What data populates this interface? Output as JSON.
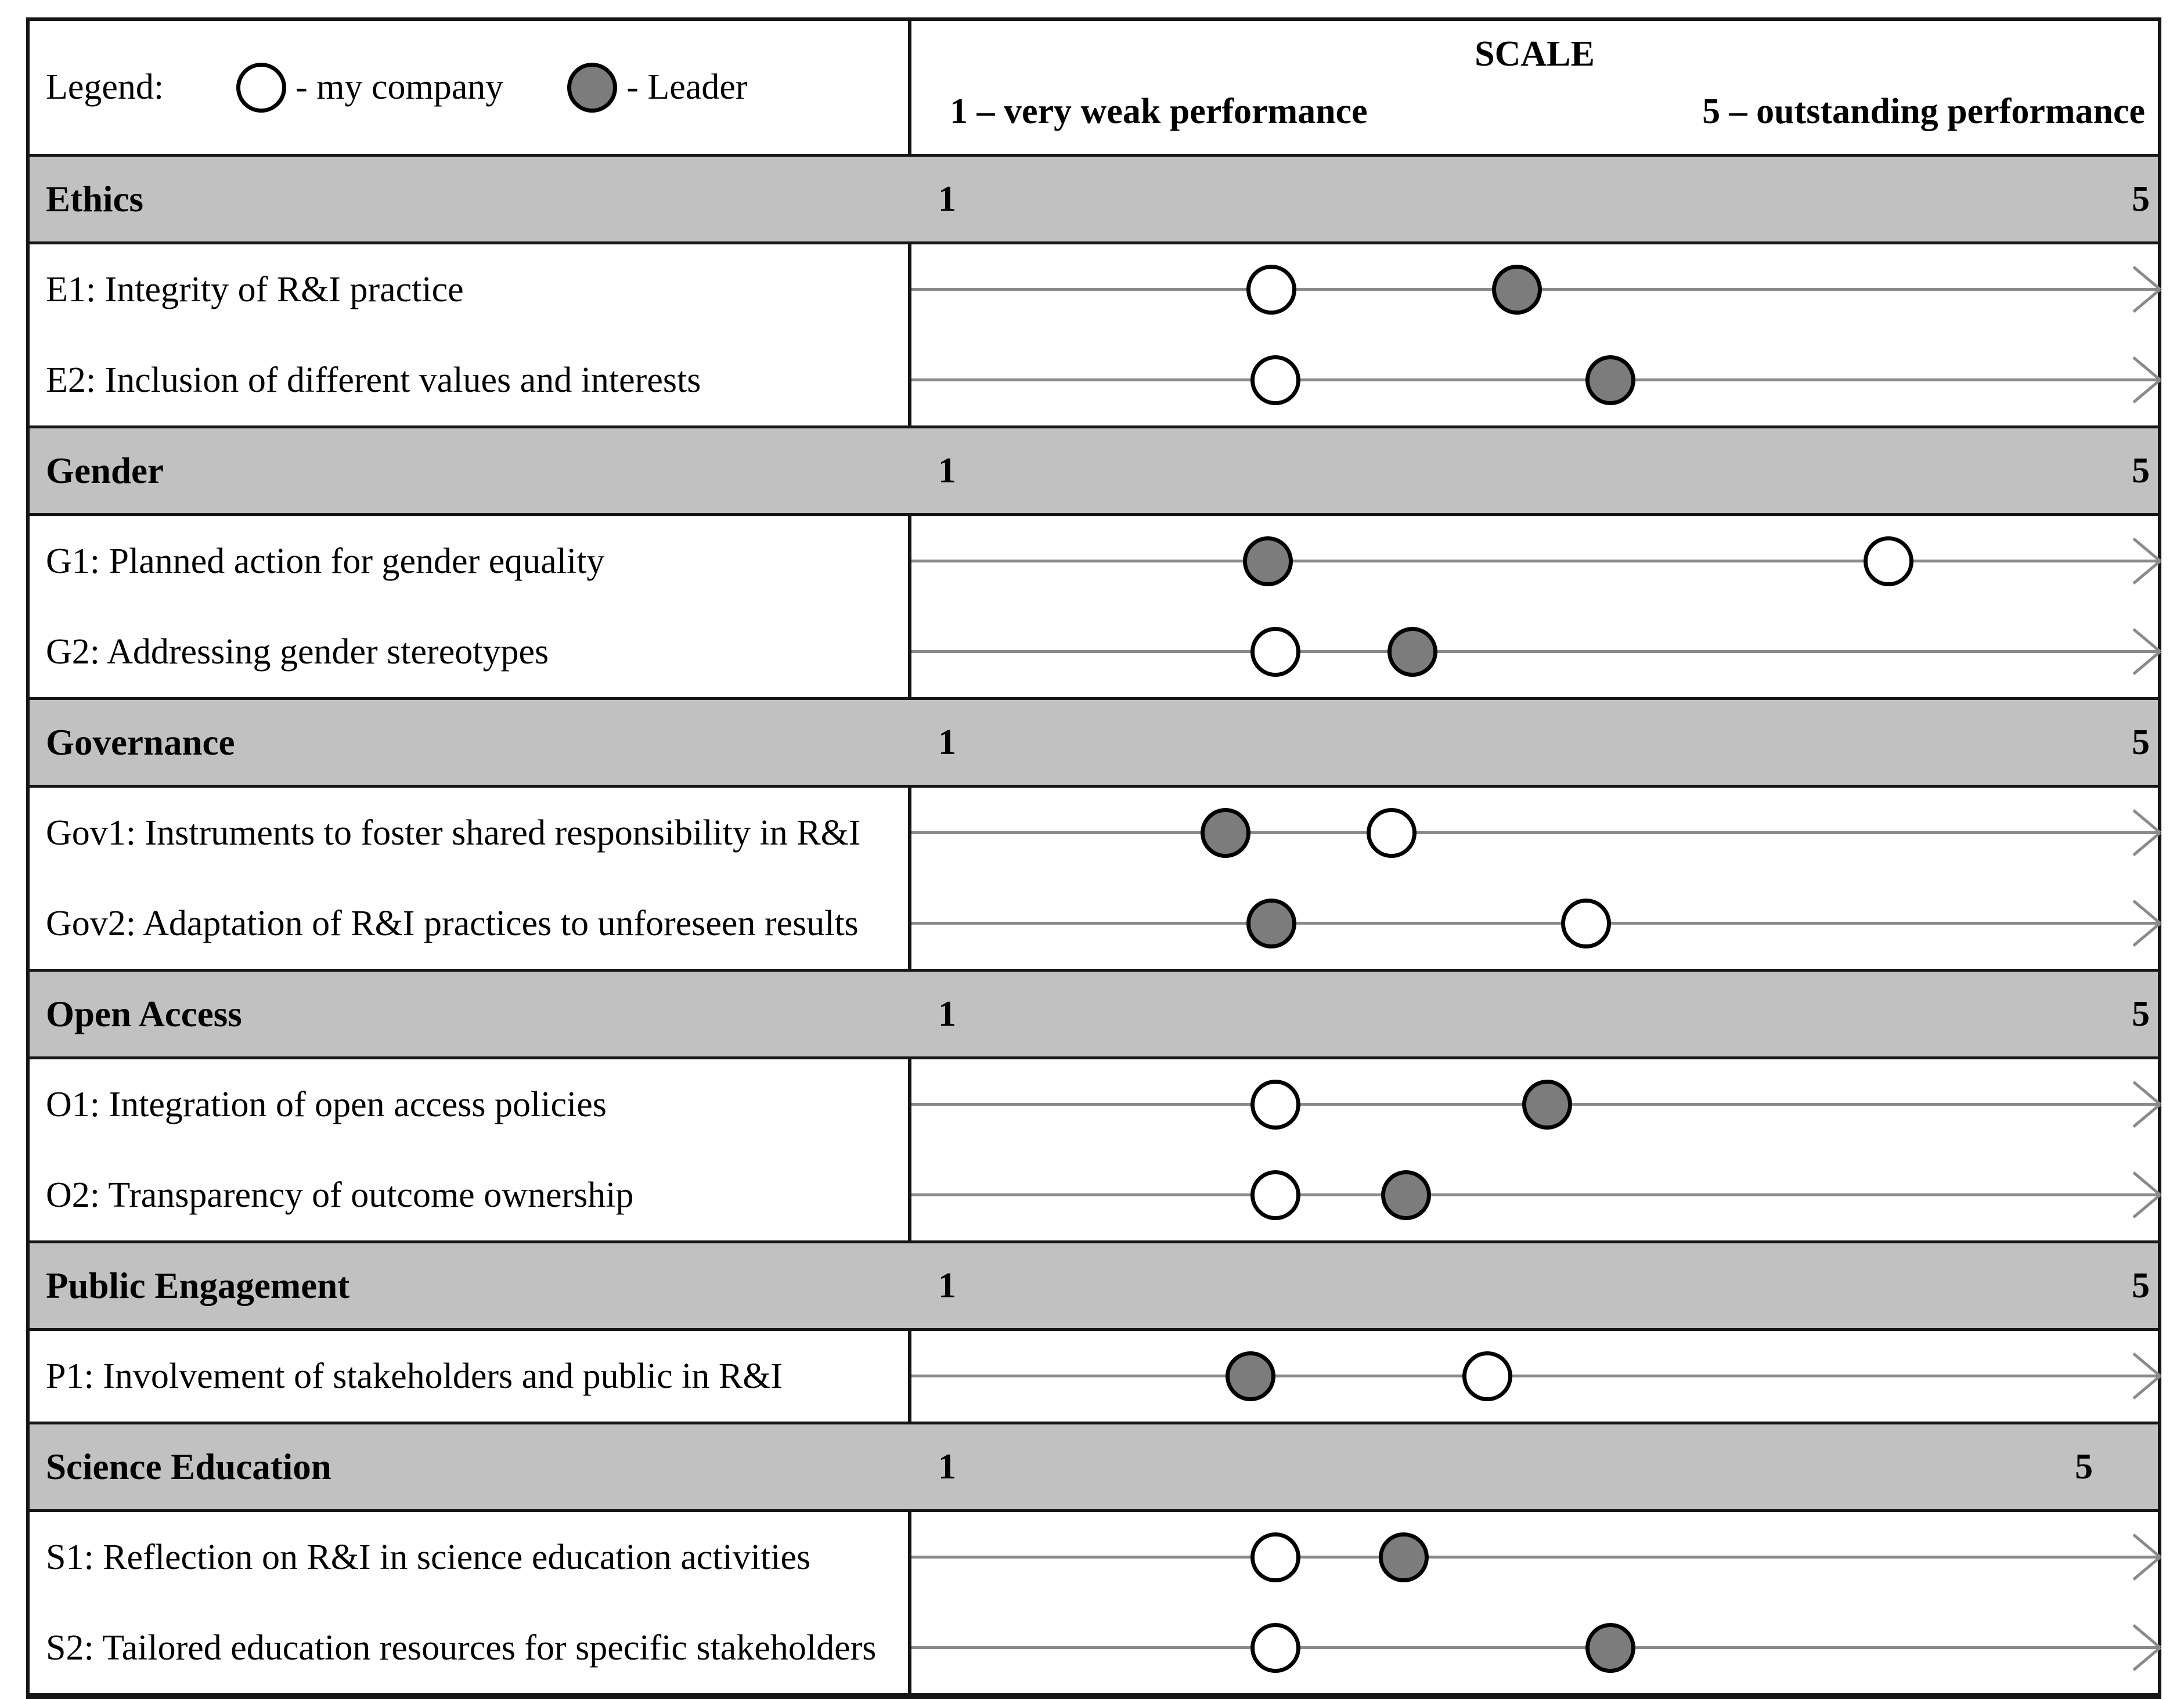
{
  "colors": {
    "band_gray": "#c1c1c1",
    "leader_fill": "#7c7c7c",
    "my_company_fill": "#ffffff",
    "marker_border": "#000000",
    "arrow_gray": "#8a8a8a",
    "frame_black": "#161616"
  },
  "legend": {
    "label": "Legend:",
    "my_company": "- my company",
    "leader": "- Leader"
  },
  "scale_header": {
    "title": "SCALE",
    "left_label": "1 – very weak performance",
    "right_label": "5 – outstanding performance"
  },
  "sections": [
    {
      "name": "Ethics",
      "scale_min": "1",
      "scale_max": "5",
      "five_right_pad": 14,
      "rows": [
        {
          "label": "E1: Integrity of R&I practice",
          "my_company_pct": 28.9,
          "leader_pct": 48.6
        },
        {
          "label": "E2: Inclusion of different values and interests",
          "my_company_pct": 29.2,
          "leader_pct": 56.1
        }
      ]
    },
    {
      "name": "Gender",
      "scale_min": "1",
      "scale_max": "5",
      "five_right_pad": 14,
      "rows": [
        {
          "label": "G1: Planned action for gender equality",
          "my_company_pct": 78.4,
          "leader_pct": 28.6
        },
        {
          "label": "G2: Addressing gender stereotypes",
          "my_company_pct": 29.2,
          "leader_pct": 40.2
        }
      ]
    },
    {
      "name": "Governance",
      "scale_min": "1",
      "scale_max": "5",
      "five_right_pad": 14,
      "rows": [
        {
          "label": "Gov1: Instruments to foster shared responsibility in R&I",
          "my_company_pct": 38.5,
          "leader_pct": 25.2
        },
        {
          "label": "Gov2: Adaptation of R&I practices to unforeseen results",
          "my_company_pct": 54.1,
          "leader_pct": 28.9
        }
      ]
    },
    {
      "name": "Open Access",
      "scale_min": "1",
      "scale_max": "5",
      "five_right_pad": 14,
      "rows": [
        {
          "label": "O1: Integration of open access policies",
          "my_company_pct": 29.2,
          "leader_pct": 51.0
        },
        {
          "label": "O2: Transparency of outcome ownership",
          "my_company_pct": 29.2,
          "leader_pct": 39.7
        }
      ]
    },
    {
      "name": "Public Engagement",
      "scale_min": "1",
      "scale_max": "5",
      "five_right_pad": 14,
      "rows": [
        {
          "label": "P1: Involvement of stakeholders and public in R&I",
          "my_company_pct": 46.2,
          "leader_pct": 27.2
        }
      ]
    },
    {
      "name": "Science Education",
      "scale_min": "1",
      "scale_max": "5",
      "five_right_pad": 112,
      "rows": [
        {
          "label": "S1: Reflection on R&I in science education activities",
          "my_company_pct": 29.2,
          "leader_pct": 39.5
        },
        {
          "label": "S2: Tailored education resources for specific stakeholders",
          "my_company_pct": 29.2,
          "leader_pct": 56.1
        }
      ]
    }
  ],
  "chart_data": {
    "type": "scatter",
    "title": "SCALE",
    "x_axis": {
      "min": 1,
      "max": 5,
      "min_label": "1 – very weak performance",
      "max_label": "5 – outstanding performance"
    },
    "legend_entries": [
      "my company",
      "Leader"
    ],
    "groups": [
      "Ethics",
      "Gender",
      "Governance",
      "Open Access",
      "Public Engagement",
      "Science Education"
    ],
    "points": [
      {
        "group": "Ethics",
        "indicator": "E1: Integrity of R&I practice",
        "my_company": 2.2,
        "leader": 2.9
      },
      {
        "group": "Ethics",
        "indicator": "E2: Inclusion of different values and interests",
        "my_company": 2.2,
        "leader": 3.2
      },
      {
        "group": "Gender",
        "indicator": "G1: Planned action for gender equality",
        "my_company": 4.1,
        "leader": 2.1
      },
      {
        "group": "Gender",
        "indicator": "G2: Addressing gender stereotypes",
        "my_company": 2.2,
        "leader": 2.6
      },
      {
        "group": "Governance",
        "indicator": "Gov1: Instruments to foster shared responsibility in R&I",
        "my_company": 2.5,
        "leader": 2.0
      },
      {
        "group": "Governance",
        "indicator": "Gov2: Adaptation of R&I practices to unforeseen results",
        "my_company": 3.2,
        "leader": 2.2
      },
      {
        "group": "Open Access",
        "indicator": "O1: Integration of open access policies",
        "my_company": 2.2,
        "leader": 3.0
      },
      {
        "group": "Open Access",
        "indicator": "O2: Transparency of outcome ownership",
        "my_company": 2.2,
        "leader": 2.6
      },
      {
        "group": "Public Engagement",
        "indicator": "P1: Involvement of stakeholders and public in R&I",
        "my_company": 2.9,
        "leader": 2.1
      },
      {
        "group": "Science Education",
        "indicator": "S1: Reflection on R&I in science education activities",
        "my_company": 2.2,
        "leader": 2.6
      },
      {
        "group": "Science Education",
        "indicator": "S2: Tailored education resources for specific stakeholders",
        "my_company": 2.2,
        "leader": 3.2
      }
    ]
  }
}
